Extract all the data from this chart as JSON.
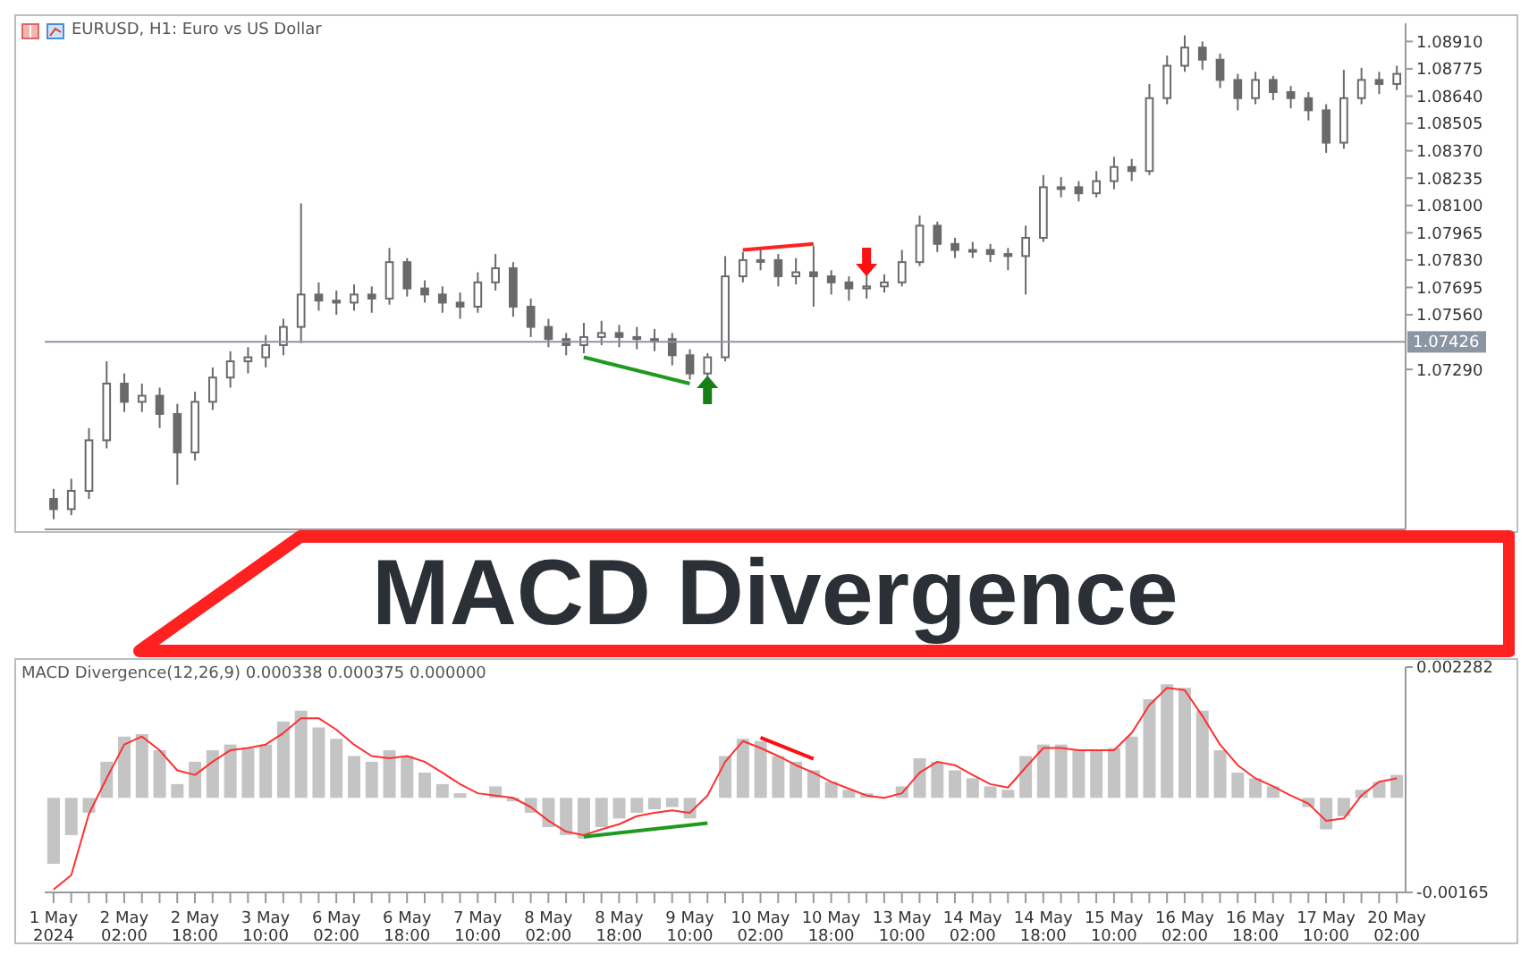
{
  "chart_data": [
    {
      "type": "candlestick",
      "title": "EURUSD, H1:  Euro vs US Dollar",
      "color": "#6a6a6a",
      "categories": [
        null,
        null,
        null,
        null,
        null,
        null,
        null,
        null,
        null,
        null,
        null,
        null,
        null,
        null,
        null,
        null,
        null,
        null,
        null,
        null,
        null,
        null,
        null,
        null,
        null,
        null,
        null,
        null,
        null,
        null,
        null,
        null,
        null,
        null,
        null,
        null,
        null,
        null,
        null,
        null,
        null,
        null,
        null,
        null,
        null,
        null,
        null,
        null,
        null,
        null,
        null,
        null,
        null,
        null,
        null,
        null,
        null,
        null,
        null,
        null,
        null,
        null,
        null,
        null,
        null,
        null,
        null,
        null,
        null,
        null,
        null,
        null,
        null,
        null,
        null,
        null,
        null
      ],
      "ohlc": [
        [
          1.0665,
          1.067,
          1.0655,
          1.066
        ],
        [
          1.066,
          1.0675,
          1.0657,
          1.0669
        ],
        [
          1.0669,
          1.07,
          1.0665,
          1.0694
        ],
        [
          1.0694,
          1.0733,
          1.069,
          1.0722
        ],
        [
          1.0722,
          1.0727,
          1.0708,
          1.0713
        ],
        [
          1.0713,
          1.0722,
          1.0708,
          1.0716
        ],
        [
          1.0716,
          1.072,
          1.07,
          1.0707
        ],
        [
          1.0707,
          1.0712,
          1.0672,
          1.0688
        ],
        [
          1.0688,
          1.0718,
          1.0684,
          1.0713
        ],
        [
          1.0713,
          1.073,
          1.0709,
          1.0725
        ],
        [
          1.0725,
          1.0738,
          1.072,
          1.0733
        ],
        [
          1.0733,
          1.074,
          1.0727,
          1.0735
        ],
        [
          1.0735,
          1.0746,
          1.073,
          1.0741
        ],
        [
          1.0741,
          1.0754,
          1.0736,
          1.075
        ],
        [
          1.075,
          1.0811,
          1.0742,
          1.0766
        ],
        [
          1.0766,
          1.0772,
          1.0758,
          1.0763
        ],
        [
          1.0763,
          1.0768,
          1.0756,
          1.0762
        ],
        [
          1.0762,
          1.0771,
          1.0758,
          1.0766
        ],
        [
          1.0766,
          1.077,
          1.0757,
          1.0764
        ],
        [
          1.0764,
          1.0789,
          1.0761,
          1.0782
        ],
        [
          1.0782,
          1.0784,
          1.0765,
          1.0769
        ],
        [
          1.0769,
          1.0773,
          1.0762,
          1.0766
        ],
        [
          1.0766,
          1.077,
          1.0757,
          1.0762
        ],
        [
          1.0762,
          1.0767,
          1.0754,
          1.076
        ],
        [
          1.076,
          1.0777,
          1.0757,
          1.0772
        ],
        [
          1.0772,
          1.0786,
          1.0768,
          1.0779
        ],
        [
          1.0779,
          1.0782,
          1.0755,
          1.076
        ],
        [
          1.076,
          1.0764,
          1.0745,
          1.075
        ],
        [
          1.075,
          1.0754,
          1.074,
          1.0744
        ],
        [
          1.0744,
          1.0747,
          1.0736,
          1.0741
        ],
        [
          1.0741,
          1.0752,
          1.0737,
          1.0745
        ],
        [
          1.0745,
          1.0753,
          1.0741,
          1.0747
        ],
        [
          1.0747,
          1.0751,
          1.074,
          1.0745
        ],
        [
          1.0745,
          1.075,
          1.0739,
          1.0744
        ],
        [
          1.0744,
          1.0749,
          1.0738,
          1.0744
        ],
        [
          1.0744,
          1.0747,
          1.0731,
          1.0736
        ],
        [
          1.0736,
          1.0739,
          1.0724,
          1.0727
        ],
        [
          1.0727,
          1.0737,
          1.0725,
          1.0735
        ],
        [
          1.0735,
          1.0785,
          1.0733,
          1.0775
        ],
        [
          1.0775,
          1.0787,
          1.0772,
          1.0783
        ],
        [
          1.0783,
          1.0789,
          1.0778,
          1.0783
        ],
        [
          1.0783,
          1.0786,
          1.077,
          1.0775
        ],
        [
          1.0775,
          1.0784,
          1.0771,
          1.0777
        ],
        [
          1.0777,
          1.079,
          1.076,
          1.0775
        ],
        [
          1.0775,
          1.0778,
          1.0766,
          1.0772
        ],
        [
          1.0772,
          1.0775,
          1.0763,
          1.0769
        ],
        [
          1.0769,
          1.0776,
          1.0764,
          1.077
        ],
        [
          1.077,
          1.0776,
          1.0767,
          1.0772
        ],
        [
          1.0772,
          1.0788,
          1.077,
          1.0782
        ],
        [
          1.0782,
          1.0805,
          1.078,
          1.08
        ],
        [
          1.08,
          1.0802,
          1.0787,
          1.0791
        ],
        [
          1.0791,
          1.0794,
          1.0784,
          1.0788
        ],
        [
          1.0788,
          1.0792,
          1.0784,
          1.0788
        ],
        [
          1.0788,
          1.0791,
          1.0782,
          1.0786
        ],
        [
          1.0786,
          1.0789,
          1.0778,
          1.0785
        ],
        [
          1.0785,
          1.08,
          1.0766,
          1.0794
        ],
        [
          1.0794,
          1.0825,
          1.0792,
          1.0819
        ],
        [
          1.0819,
          1.0824,
          1.0814,
          1.0819
        ],
        [
          1.0819,
          1.0822,
          1.0812,
          1.0816
        ],
        [
          1.0816,
          1.0827,
          1.0814,
          1.0822
        ],
        [
          1.0822,
          1.0834,
          1.0818,
          1.0829
        ],
        [
          1.0829,
          1.0833,
          1.0822,
          1.0827
        ],
        [
          1.0827,
          1.087,
          1.0825,
          1.0863
        ],
        [
          1.0863,
          1.0884,
          1.086,
          1.0879
        ],
        [
          1.0879,
          1.0894,
          1.0876,
          1.0888
        ],
        [
          1.0888,
          1.0891,
          1.0877,
          1.0882
        ],
        [
          1.0882,
          1.0885,
          1.0868,
          1.0872
        ],
        [
          1.0872,
          1.0875,
          1.0857,
          1.0863
        ],
        [
          1.0863,
          1.0876,
          1.086,
          1.0872
        ],
        [
          1.0872,
          1.0874,
          1.0862,
          1.0866
        ],
        [
          1.0866,
          1.0869,
          1.0858,
          1.0863
        ],
        [
          1.0863,
          1.0866,
          1.0852,
          1.0857
        ],
        [
          1.0857,
          1.086,
          1.0836,
          1.0841
        ],
        [
          1.0841,
          1.0877,
          1.0838,
          1.0863
        ],
        [
          1.0863,
          1.0878,
          1.086,
          1.0872
        ],
        [
          1.0872,
          1.0876,
          1.0865,
          1.087
        ],
        [
          1.087,
          1.0879,
          1.0867,
          1.0875
        ]
      ],
      "series": [
        {
          "type": "line",
          "color": "#1f9a1f",
          "values": [
            null,
            null,
            null,
            null,
            null,
            null,
            null,
            null,
            null,
            null,
            null,
            null,
            null,
            null,
            null,
            null,
            null,
            null,
            null,
            null,
            null,
            null,
            null,
            null,
            null,
            null,
            null,
            null,
            null,
            null,
            1.0735,
            null,
            null,
            null,
            null,
            null,
            1.0722,
            null,
            null,
            null,
            null,
            null,
            null,
            null,
            null,
            null,
            null,
            null,
            null,
            null,
            null,
            null,
            null,
            null,
            null,
            null,
            null,
            null,
            null,
            null,
            null,
            null,
            null,
            null,
            null,
            null,
            null,
            null,
            null,
            null,
            null,
            null,
            null,
            null,
            null,
            null,
            null
          ]
        },
        {
          "type": "line",
          "color": "#ff2020",
          "values": [
            null,
            null,
            null,
            null,
            null,
            null,
            null,
            null,
            null,
            null,
            null,
            null,
            null,
            null,
            null,
            null,
            null,
            null,
            null,
            null,
            null,
            null,
            null,
            null,
            null,
            null,
            null,
            null,
            null,
            null,
            null,
            null,
            null,
            null,
            null,
            null,
            null,
            null,
            null,
            1.0788,
            null,
            null,
            null,
            1.0791,
            null,
            null,
            null,
            null,
            null,
            null,
            null,
            null,
            null,
            null,
            null,
            null,
            null,
            null,
            null,
            null,
            null,
            null,
            null,
            null,
            null,
            null,
            null,
            null,
            null,
            null,
            null,
            null,
            null,
            null,
            null,
            null,
            null
          ]
        },
        {
          "type": "scatter",
          "color": "#168016",
          "marker": "triangle",
          "values": [
            null,
            null,
            null,
            null,
            null,
            null,
            null,
            null,
            null,
            null,
            null,
            null,
            null,
            null,
            null,
            null,
            null,
            null,
            null,
            null,
            null,
            null,
            null,
            null,
            null,
            null,
            null,
            null,
            null,
            null,
            null,
            null,
            null,
            null,
            null,
            null,
            null,
            1.0718,
            null,
            null,
            null,
            null,
            null,
            null,
            null,
            null,
            null,
            null,
            null,
            null,
            null,
            null,
            null,
            null,
            null,
            null,
            null,
            null,
            null,
            null,
            null,
            null,
            null,
            null,
            null,
            null,
            null,
            null,
            null,
            null,
            null,
            null,
            null,
            null,
            null,
            null,
            null
          ]
        },
        {
          "type": "scatter",
          "color": "#ff1010",
          "marker": "triangle",
          "values": [
            null,
            null,
            null,
            null,
            null,
            null,
            null,
            null,
            null,
            null,
            null,
            null,
            null,
            null,
            null,
            null,
            null,
            null,
            null,
            null,
            null,
            null,
            null,
            null,
            null,
            null,
            null,
            null,
            null,
            null,
            null,
            null,
            null,
            null,
            null,
            null,
            null,
            null,
            null,
            null,
            null,
            null,
            null,
            null,
            null,
            null,
            1.0783,
            null,
            null,
            null,
            null,
            null,
            null,
            null,
            null,
            null,
            null,
            null,
            null,
            null,
            null,
            null,
            null,
            null,
            null,
            null,
            null,
            null,
            null,
            null,
            null,
            null,
            null,
            null,
            null,
            null,
            null
          ]
        }
      ],
      "ylim": [
        1.065,
        1.09
      ],
      "yticks": [
        {
          "value": 1.0729,
          "label": "1.07290"
        },
        {
          "value": 1.0756,
          "label": "1.07560"
        },
        {
          "value": 1.07695,
          "label": "1.07695"
        },
        {
          "value": 1.0783,
          "label": "1.07830"
        },
        {
          "value": 1.07965,
          "label": "1.07965"
        },
        {
          "value": 1.081,
          "label": "1.08100"
        },
        {
          "value": 1.08235,
          "label": "1.08235"
        },
        {
          "value": 1.0837,
          "label": "1.08370"
        },
        {
          "value": 1.08505,
          "label": "1.08505"
        },
        {
          "value": 1.0864,
          "label": "1.08640"
        },
        {
          "value": 1.08775,
          "label": "1.08775"
        },
        {
          "value": 1.0891,
          "label": "1.08910"
        }
      ],
      "ref_lines": [
        {
          "axis": "y",
          "value": 1.07426,
          "label": "1.07426",
          "color": "#8a96a3"
        }
      ],
      "tick_labels": "y",
      "annotations": [
        "MACD Divergence"
      ]
    },
    {
      "type": "bar",
      "title": "MACD Divergence(12,26,9) 0.000338 0.000375 0.000000",
      "categories": [
        "1 May 2024",
        null,
        null,
        null,
        "2 May 02:00",
        null,
        null,
        null,
        "2 May 18:00",
        null,
        null,
        null,
        "3 May 10:00",
        null,
        null,
        null,
        "6 May 02:00",
        null,
        null,
        null,
        "6 May 18:00",
        null,
        null,
        null,
        "7 May 10:00",
        null,
        null,
        null,
        "8 May 02:00",
        null,
        null,
        null,
        "8 May 18:00",
        null,
        null,
        null,
        "9 May 10:00",
        null,
        null,
        null,
        "10 May 02:00",
        null,
        null,
        null,
        "10 May 18:00",
        null,
        null,
        null,
        "13 May 10:00",
        null,
        null,
        null,
        "14 May 02:00",
        null,
        null,
        null,
        "14 May 18:00",
        null,
        null,
        null,
        "15 May 10:00",
        null,
        null,
        null,
        "16 May 02:00",
        null,
        null,
        null,
        "16 May 18:00",
        null,
        null,
        null,
        "17 May 10:00",
        null,
        null,
        null,
        "20 May 02:00"
      ],
      "series": [
        {
          "type": "bar",
          "color": "#c4c4c4",
          "values": [
            -0.00115,
            -0.00065,
            -0.00026,
            0.00063,
            0.00107,
            0.00111,
            0.00083,
            0.00024,
            0.00063,
            0.00083,
            0.00093,
            0.00087,
            0.00093,
            0.00133,
            0.00152,
            0.00123,
            0.00103,
            0.00073,
            0.00063,
            0.00083,
            0.00073,
            0.00044,
            0.00024,
            8e-05,
            null,
            0.0002,
            -6e-05,
            -0.00026,
            -0.00051,
            -0.00065,
            -0.00071,
            -0.00051,
            -0.00036,
            -0.00026,
            -0.0002,
            -0.00016,
            -0.00036,
            0,
            0.00073,
            0.00103,
            0.00099,
            0.00073,
            0.00063,
            0.00048,
            0.00028,
            0.00014,
            8e-05,
            0,
            0.0002,
            0.00069,
            0.00063,
            0.00048,
            0.00034,
            0.0002,
            0.00014,
            0.00073,
            0.00093,
            0.00093,
            0.00083,
            0.00083,
            0.00087,
            0.00107,
            0.00172,
            0.00198,
            0.00192,
            0.00152,
            0.00083,
            0.00044,
            0.00034,
            0.0002,
            null,
            -0.00016,
            -0.00055,
            -0.00032,
            0.00014,
            0.00028,
            0.0004
          ]
        },
        {
          "type": "line",
          "color": "#ff3030",
          "values": [
            -0.0016,
            -0.00135,
            -0.00028,
            0.00034,
            0.00093,
            0.00107,
            0.00083,
            0.00048,
            0.0004,
            0.00063,
            0.00083,
            0.00087,
            0.00093,
            0.00113,
            0.00139,
            0.00139,
            0.00119,
            0.00093,
            0.00073,
            0.00069,
            0.00073,
            0.00063,
            0.00044,
            0.00024,
            8e-05,
            4e-05,
            0,
            -0.00016,
            -0.0004,
            -0.00059,
            -0.00065,
            -0.00055,
            -0.00046,
            -0.00032,
            -0.00026,
            -0.00022,
            -0.00026,
            4e-05,
            0.00063,
            0.00099,
            0.00087,
            0.00073,
            0.00057,
            0.00044,
            0.00028,
            0.00016,
            4e-05,
            0,
            8e-05,
            0.00044,
            0.00063,
            0.00057,
            0.0004,
            0.00024,
            0.00018,
            0.00053,
            0.00087,
            0.00087,
            0.00083,
            0.00083,
            0.00083,
            0.00113,
            0.00162,
            0.00192,
            0.00188,
            0.00143,
            0.00093,
            0.00057,
            0.00034,
            0.0002,
            4e-05,
            -0.0001,
            -0.0004,
            -0.00036,
            4e-05,
            0.00028,
            0.00034
          ]
        },
        {
          "type": "line",
          "color": "#1f9a1f",
          "values": [
            null,
            null,
            null,
            null,
            null,
            null,
            null,
            null,
            null,
            null,
            null,
            null,
            null,
            null,
            null,
            null,
            null,
            null,
            null,
            null,
            null,
            null,
            null,
            null,
            null,
            null,
            null,
            null,
            null,
            null,
            -0.00068,
            null,
            null,
            null,
            null,
            null,
            null,
            -0.00044,
            null,
            null,
            null,
            null,
            null,
            null,
            null,
            null,
            null,
            null,
            null,
            null,
            null,
            null,
            null,
            null,
            null,
            null,
            null,
            null,
            null,
            null,
            null,
            null,
            null,
            null,
            null,
            null,
            null,
            null,
            null,
            null,
            null,
            null,
            null,
            null,
            null,
            null,
            null
          ]
        },
        {
          "type": "line",
          "color": "#ff1010",
          "values": [
            null,
            null,
            null,
            null,
            null,
            null,
            null,
            null,
            null,
            null,
            null,
            null,
            null,
            null,
            null,
            null,
            null,
            null,
            null,
            null,
            null,
            null,
            null,
            null,
            null,
            null,
            null,
            null,
            null,
            null,
            null,
            null,
            null,
            null,
            null,
            null,
            null,
            null,
            null,
            null,
            0.00105,
            null,
            null,
            0.00068,
            null,
            null,
            null,
            null,
            null,
            null,
            null,
            null,
            null,
            null,
            null,
            null,
            null,
            null,
            null,
            null,
            null,
            null,
            null,
            null,
            null,
            null,
            null,
            null,
            null,
            null,
            null,
            null,
            null,
            null,
            null,
            null,
            null
          ]
        }
      ],
      "ylim": [
        -0.00165,
        0.002282
      ],
      "yticks": [
        -0.00165,
        0.002282
      ]
    }
  ]
}
